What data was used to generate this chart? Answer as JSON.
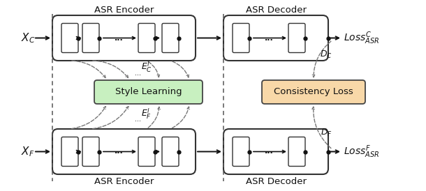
{
  "fig_width": 6.1,
  "fig_height": 2.74,
  "dpi": 100,
  "bg_color": "#ffffff",
  "encoder_top_label": "ASR Encoder",
  "decoder_top_label": "ASR Decoder",
  "encoder_bottom_label": "ASR Encoder",
  "decoder_bottom_label": "ASR Decoder",
  "xc_label": "$X_C$",
  "xf_label": "$X_F$",
  "loss_c_label": "$\\mathit{Loss}^C_{ASR}$",
  "loss_f_label": "$\\mathit{Loss}^F_{ASR}$",
  "style_learning_label": "Style Learning",
  "consistency_loss_label": "Consistency Loss",
  "ec_label": "$E^l_C$",
  "ef_label": "$E^l_F$",
  "dc_label": "$D_C$",
  "df_label": "$D_F$",
  "style_box_color": "#c8f0c0",
  "style_box_edge": "#444444",
  "consistency_box_color": "#f8d8a8",
  "consistency_box_edge": "#444444",
  "outer_box_color": "#ffffff",
  "outer_box_edge": "#333333",
  "cell_color": "#ffffff",
  "cell_edge": "#333333",
  "arrow_color": "#111111",
  "dashed_color": "#555555",
  "curved_color": "#777777",
  "text_color": "#111111"
}
